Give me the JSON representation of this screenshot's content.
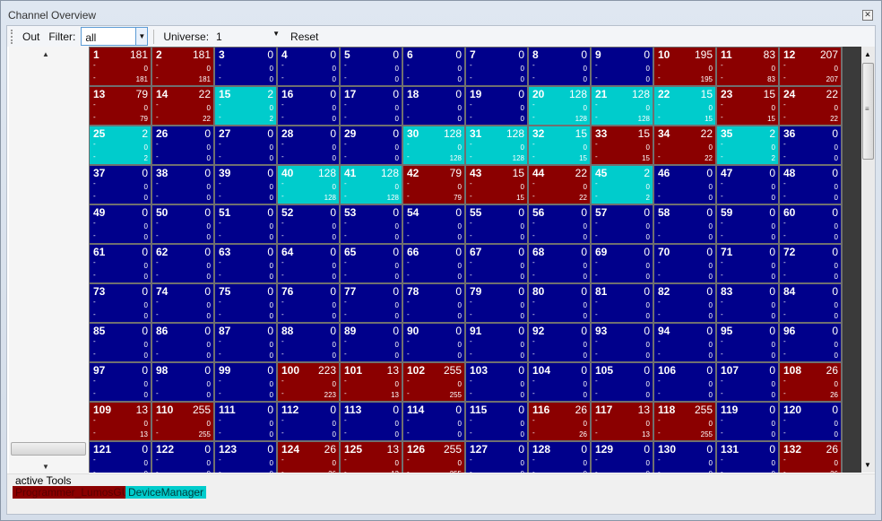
{
  "window": {
    "title": "Channel Overview",
    "close_icon": "close-icon"
  },
  "toolbar": {
    "out_label": "Out",
    "filter_label": "Filter:",
    "filter_value": "all",
    "universe_label": "Universe:",
    "universe_value": "1",
    "reset_label": "Reset"
  },
  "colors": {
    "red": "#8b0000",
    "cyan": "#00cccc",
    "blue": "#00008b",
    "grid": "#707070"
  },
  "channels": [
    {
      "n": "1",
      "v": "181",
      "c": "red"
    },
    {
      "n": "2",
      "v": "181",
      "c": "red"
    },
    {
      "n": "3",
      "v": "0",
      "c": "blue"
    },
    {
      "n": "4",
      "v": "0",
      "c": "blue"
    },
    {
      "n": "5",
      "v": "0",
      "c": "blue"
    },
    {
      "n": "6",
      "v": "0",
      "c": "blue"
    },
    {
      "n": "7",
      "v": "0",
      "c": "blue"
    },
    {
      "n": "8",
      "v": "0",
      "c": "blue"
    },
    {
      "n": "9",
      "v": "0",
      "c": "blue"
    },
    {
      "n": "10",
      "v": "195",
      "c": "red"
    },
    {
      "n": "11",
      "v": "83",
      "c": "red"
    },
    {
      "n": "12",
      "v": "207",
      "c": "red"
    },
    {
      "n": "13",
      "v": "79",
      "c": "red"
    },
    {
      "n": "14",
      "v": "22",
      "c": "red"
    },
    {
      "n": "15",
      "v": "2",
      "c": "cyan"
    },
    {
      "n": "16",
      "v": "0",
      "c": "blue"
    },
    {
      "n": "17",
      "v": "0",
      "c": "blue"
    },
    {
      "n": "18",
      "v": "0",
      "c": "blue"
    },
    {
      "n": "19",
      "v": "0",
      "c": "blue"
    },
    {
      "n": "20",
      "v": "128",
      "c": "cyan"
    },
    {
      "n": "21",
      "v": "128",
      "c": "cyan"
    },
    {
      "n": "22",
      "v": "15",
      "c": "cyan"
    },
    {
      "n": "23",
      "v": "15",
      "c": "red"
    },
    {
      "n": "24",
      "v": "22",
      "c": "red"
    },
    {
      "n": "25",
      "v": "2",
      "c": "cyan"
    },
    {
      "n": "26",
      "v": "0",
      "c": "blue"
    },
    {
      "n": "27",
      "v": "0",
      "c": "blue"
    },
    {
      "n": "28",
      "v": "0",
      "c": "blue"
    },
    {
      "n": "29",
      "v": "0",
      "c": "blue"
    },
    {
      "n": "30",
      "v": "128",
      "c": "cyan"
    },
    {
      "n": "31",
      "v": "128",
      "c": "cyan"
    },
    {
      "n": "32",
      "v": "15",
      "c": "cyan"
    },
    {
      "n": "33",
      "v": "15",
      "c": "red"
    },
    {
      "n": "34",
      "v": "22",
      "c": "red"
    },
    {
      "n": "35",
      "v": "2",
      "c": "cyan"
    },
    {
      "n": "36",
      "v": "0",
      "c": "blue"
    },
    {
      "n": "37",
      "v": "0",
      "c": "blue"
    },
    {
      "n": "38",
      "v": "0",
      "c": "blue"
    },
    {
      "n": "39",
      "v": "0",
      "c": "blue"
    },
    {
      "n": "40",
      "v": "128",
      "c": "cyan"
    },
    {
      "n": "41",
      "v": "128",
      "c": "cyan"
    },
    {
      "n": "42",
      "v": "79",
      "c": "red"
    },
    {
      "n": "43",
      "v": "15",
      "c": "red"
    },
    {
      "n": "44",
      "v": "22",
      "c": "red"
    },
    {
      "n": "45",
      "v": "2",
      "c": "cyan"
    },
    {
      "n": "46",
      "v": "0",
      "c": "blue"
    },
    {
      "n": "47",
      "v": "0",
      "c": "blue"
    },
    {
      "n": "48",
      "v": "0",
      "c": "blue"
    },
    {
      "n": "49",
      "v": "0",
      "c": "blue"
    },
    {
      "n": "50",
      "v": "0",
      "c": "blue"
    },
    {
      "n": "51",
      "v": "0",
      "c": "blue"
    },
    {
      "n": "52",
      "v": "0",
      "c": "blue"
    },
    {
      "n": "53",
      "v": "0",
      "c": "blue"
    },
    {
      "n": "54",
      "v": "0",
      "c": "blue"
    },
    {
      "n": "55",
      "v": "0",
      "c": "blue"
    },
    {
      "n": "56",
      "v": "0",
      "c": "blue"
    },
    {
      "n": "57",
      "v": "0",
      "c": "blue"
    },
    {
      "n": "58",
      "v": "0",
      "c": "blue"
    },
    {
      "n": "59",
      "v": "0",
      "c": "blue"
    },
    {
      "n": "60",
      "v": "0",
      "c": "blue"
    },
    {
      "n": "61",
      "v": "0",
      "c": "blue"
    },
    {
      "n": "62",
      "v": "0",
      "c": "blue"
    },
    {
      "n": "63",
      "v": "0",
      "c": "blue"
    },
    {
      "n": "64",
      "v": "0",
      "c": "blue"
    },
    {
      "n": "65",
      "v": "0",
      "c": "blue"
    },
    {
      "n": "66",
      "v": "0",
      "c": "blue"
    },
    {
      "n": "67",
      "v": "0",
      "c": "blue"
    },
    {
      "n": "68",
      "v": "0",
      "c": "blue"
    },
    {
      "n": "69",
      "v": "0",
      "c": "blue"
    },
    {
      "n": "70",
      "v": "0",
      "c": "blue"
    },
    {
      "n": "71",
      "v": "0",
      "c": "blue"
    },
    {
      "n": "72",
      "v": "0",
      "c": "blue"
    },
    {
      "n": "73",
      "v": "0",
      "c": "blue"
    },
    {
      "n": "74",
      "v": "0",
      "c": "blue"
    },
    {
      "n": "75",
      "v": "0",
      "c": "blue"
    },
    {
      "n": "76",
      "v": "0",
      "c": "blue"
    },
    {
      "n": "77",
      "v": "0",
      "c": "blue"
    },
    {
      "n": "78",
      "v": "0",
      "c": "blue"
    },
    {
      "n": "79",
      "v": "0",
      "c": "blue"
    },
    {
      "n": "80",
      "v": "0",
      "c": "blue"
    },
    {
      "n": "81",
      "v": "0",
      "c": "blue"
    },
    {
      "n": "82",
      "v": "0",
      "c": "blue"
    },
    {
      "n": "83",
      "v": "0",
      "c": "blue"
    },
    {
      "n": "84",
      "v": "0",
      "c": "blue"
    },
    {
      "n": "85",
      "v": "0",
      "c": "blue"
    },
    {
      "n": "86",
      "v": "0",
      "c": "blue"
    },
    {
      "n": "87",
      "v": "0",
      "c": "blue"
    },
    {
      "n": "88",
      "v": "0",
      "c": "blue"
    },
    {
      "n": "89",
      "v": "0",
      "c": "blue"
    },
    {
      "n": "90",
      "v": "0",
      "c": "blue"
    },
    {
      "n": "91",
      "v": "0",
      "c": "blue"
    },
    {
      "n": "92",
      "v": "0",
      "c": "blue"
    },
    {
      "n": "93",
      "v": "0",
      "c": "blue"
    },
    {
      "n": "94",
      "v": "0",
      "c": "blue"
    },
    {
      "n": "95",
      "v": "0",
      "c": "blue"
    },
    {
      "n": "96",
      "v": "0",
      "c": "blue"
    },
    {
      "n": "97",
      "v": "0",
      "c": "blue"
    },
    {
      "n": "98",
      "v": "0",
      "c": "blue"
    },
    {
      "n": "99",
      "v": "0",
      "c": "blue"
    },
    {
      "n": "100",
      "v": "223",
      "c": "red"
    },
    {
      "n": "101",
      "v": "13",
      "c": "red"
    },
    {
      "n": "102",
      "v": "255",
      "c": "red"
    },
    {
      "n": "103",
      "v": "0",
      "c": "blue"
    },
    {
      "n": "104",
      "v": "0",
      "c": "blue"
    },
    {
      "n": "105",
      "v": "0",
      "c": "blue"
    },
    {
      "n": "106",
      "v": "0",
      "c": "blue"
    },
    {
      "n": "107",
      "v": "0",
      "c": "blue"
    },
    {
      "n": "108",
      "v": "26",
      "c": "red"
    },
    {
      "n": "109",
      "v": "13",
      "c": "red"
    },
    {
      "n": "110",
      "v": "255",
      "c": "red"
    },
    {
      "n": "111",
      "v": "0",
      "c": "blue"
    },
    {
      "n": "112",
      "v": "0",
      "c": "blue"
    },
    {
      "n": "113",
      "v": "0",
      "c": "blue"
    },
    {
      "n": "114",
      "v": "0",
      "c": "blue"
    },
    {
      "n": "115",
      "v": "0",
      "c": "blue"
    },
    {
      "n": "116",
      "v": "26",
      "c": "red"
    },
    {
      "n": "117",
      "v": "13",
      "c": "red"
    },
    {
      "n": "118",
      "v": "255",
      "c": "red"
    },
    {
      "n": "119",
      "v": "0",
      "c": "blue"
    },
    {
      "n": "120",
      "v": "0",
      "c": "blue"
    },
    {
      "n": "121",
      "v": "0",
      "c": "blue"
    },
    {
      "n": "122",
      "v": "0",
      "c": "blue"
    },
    {
      "n": "123",
      "v": "0",
      "c": "blue"
    },
    {
      "n": "124",
      "v": "26",
      "c": "red"
    },
    {
      "n": "125",
      "v": "13",
      "c": "red"
    },
    {
      "n": "126",
      "v": "255",
      "c": "red"
    },
    {
      "n": "127",
      "v": "0",
      "c": "blue"
    },
    {
      "n": "128",
      "v": "0",
      "c": "blue"
    },
    {
      "n": "129",
      "v": "0",
      "c": "blue"
    },
    {
      "n": "130",
      "v": "0",
      "c": "blue"
    },
    {
      "n": "131",
      "v": "0",
      "c": "blue"
    },
    {
      "n": "132",
      "v": "26",
      "c": "red"
    }
  ],
  "cell_sub": {
    "dash": "-",
    "mid_value": "0"
  },
  "bottom": {
    "label": "active Tools",
    "tools": [
      {
        "label": "Programmer_LumosGUI",
        "color": "red"
      },
      {
        "label": "DeviceManager",
        "color": "cyan"
      }
    ]
  }
}
